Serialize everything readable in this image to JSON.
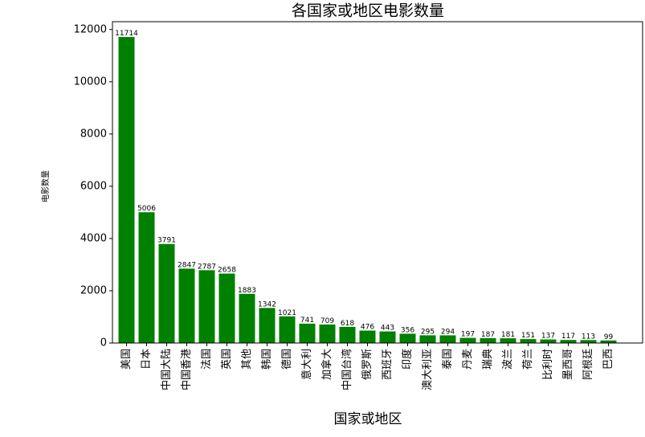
{
  "chart_data": {
    "type": "bar",
    "title": "各国家或地区电影数量",
    "x_label": "国家或地区",
    "y_label": "电影数量",
    "categories": [
      "美国",
      "日本",
      "中国大陆",
      "中国香港",
      "法国",
      "英国",
      "其他",
      "韩国",
      "德国",
      "意大利",
      "加拿大",
      "中国台湾",
      "俄罗斯",
      "西班牙",
      "印度",
      "澳大利亚",
      "泰国",
      "丹麦",
      "瑞典",
      "波兰",
      "荷兰",
      "比利时",
      "墨西哥",
      "阿根廷",
      "巴西"
    ],
    "values": [
      11714,
      5006,
      3791,
      2847,
      2787,
      2658,
      1883,
      1342,
      1021,
      741,
      709,
      618,
      476,
      443,
      356,
      295,
      294,
      197,
      187,
      181,
      151,
      137,
      117,
      113,
      99
    ],
    "color": "#008000",
    "ylim": [
      0,
      12300
    ],
    "yticks": [
      0,
      2000,
      4000,
      6000,
      8000,
      10000,
      12000
    ]
  }
}
